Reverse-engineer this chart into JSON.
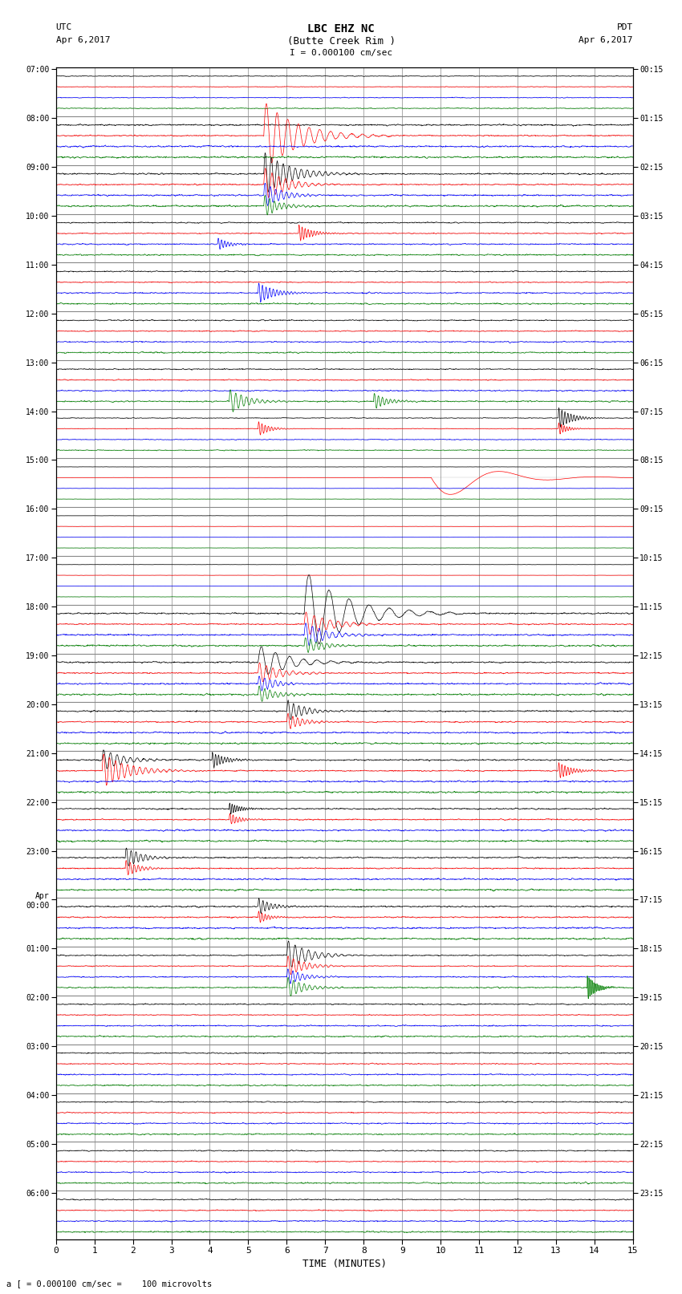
{
  "title_line1": "LBC EHZ NC",
  "title_line2": "(Butte Creek Rim )",
  "scale_label": "I = 0.000100 cm/sec",
  "left_label_line1": "UTC",
  "left_label_line2": "Apr 6,2017",
  "right_label_line1": "PDT",
  "right_label_line2": "Apr 6,2017",
  "bottom_label": "a [ = 0.000100 cm/sec =    100 microvolts",
  "xlabel": "TIME (MINUTES)",
  "utc_times": [
    "07:00",
    "08:00",
    "09:00",
    "10:00",
    "11:00",
    "12:00",
    "13:00",
    "14:00",
    "15:00",
    "16:00",
    "17:00",
    "18:00",
    "19:00",
    "20:00",
    "21:00",
    "22:00",
    "23:00",
    "Apr\n00:00",
    "01:00",
    "02:00",
    "03:00",
    "04:00",
    "05:00",
    "06:00"
  ],
  "pdt_times": [
    "00:15",
    "01:15",
    "02:15",
    "03:15",
    "04:15",
    "05:15",
    "06:15",
    "07:15",
    "08:15",
    "09:15",
    "10:15",
    "11:15",
    "12:15",
    "13:15",
    "14:15",
    "15:15",
    "16:15",
    "17:15",
    "18:15",
    "19:15",
    "20:15",
    "21:15",
    "22:15",
    "23:15"
  ],
  "n_rows": 24,
  "traces_per_row": 4,
  "colors": [
    "black",
    "red",
    "blue",
    "green"
  ],
  "bg_color": "#ffffff",
  "grid_color": "#888888",
  "figsize": [
    8.5,
    16.13
  ],
  "dpi": 100,
  "samples": 1800,
  "duration_min": 15.0
}
